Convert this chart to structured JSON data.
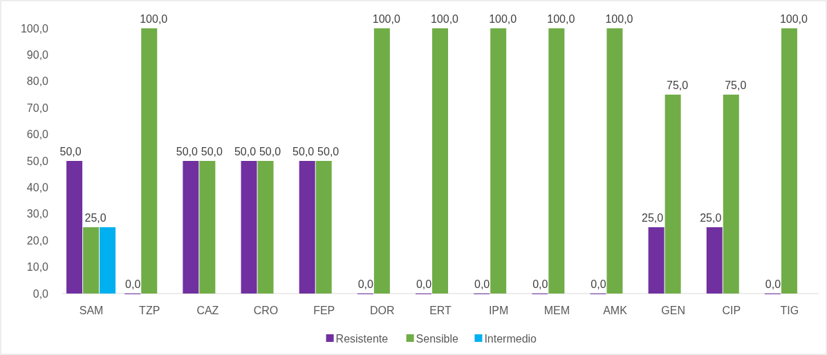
{
  "chart_data": {
    "type": "bar",
    "categories": [
      "SAM",
      "TZP",
      "CAZ",
      "CRO",
      "FEP",
      "DOR",
      "ERT",
      "IPM",
      "MEM",
      "AMK",
      "GEN",
      "CIP",
      "TIG"
    ],
    "series": [
      {
        "name": "Resistente",
        "color": "#7030a0",
        "values": [
          50,
          0,
          50,
          50,
          50,
          0,
          0,
          0,
          0,
          0,
          25,
          25,
          0
        ],
        "value_labels": [
          "50,0",
          "0,0",
          "50,0",
          "50,0",
          "50,0",
          "0,0",
          "0,0",
          "0,0",
          "0,0",
          "0,0",
          "25,0",
          "25,0",
          "0,0"
        ]
      },
      {
        "name": "Sensible",
        "color": "#70ad47",
        "values": [
          25,
          100,
          50,
          50,
          50,
          100,
          100,
          100,
          100,
          100,
          75,
          75,
          100
        ],
        "value_labels": [
          "25,0",
          "100,0",
          "50,0",
          "50,0",
          "50,0",
          "100,0",
          "100,0",
          "100,0",
          "100,0",
          "100,0",
          "75,0",
          "75,0",
          "100,0"
        ]
      },
      {
        "name": "Intermedio",
        "color": "#00b0f0",
        "values": [
          25,
          null,
          null,
          null,
          null,
          null,
          null,
          null,
          null,
          null,
          null,
          null,
          null
        ],
        "value_labels": [
          null,
          null,
          null,
          null,
          null,
          null,
          null,
          null,
          null,
          null,
          null,
          null,
          null
        ]
      }
    ],
    "ylim": [
      0,
      100
    ],
    "yticks": [
      {
        "value": 0,
        "label": "0,0"
      },
      {
        "value": 10,
        "label": "10,0"
      },
      {
        "value": 20,
        "label": "20,0"
      },
      {
        "value": 30,
        "label": "30,0"
      },
      {
        "value": 40,
        "label": "40,0"
      },
      {
        "value": 50,
        "label": "50,0"
      },
      {
        "value": 60,
        "label": "60,0"
      },
      {
        "value": 70,
        "label": "70,0"
      },
      {
        "value": 80,
        "label": "80,0"
      },
      {
        "value": 90,
        "label": "90,0"
      },
      {
        "value": 100,
        "label": "100,0"
      }
    ],
    "grid": false,
    "legend": "bottom"
  }
}
